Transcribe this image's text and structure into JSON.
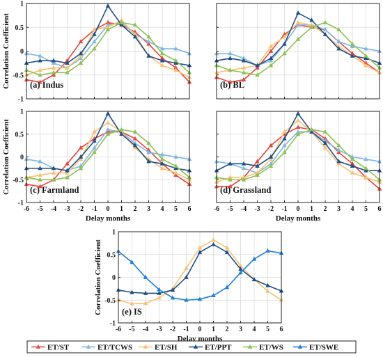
{
  "chart_data": [
    {
      "type": "line",
      "label": "(a) Indus",
      "x": [
        -6,
        -5,
        -4,
        -3,
        -2,
        -1,
        0,
        1,
        2,
        3,
        4,
        5,
        6
      ],
      "xticks": [
        "",
        "",
        "",
        "",
        "",
        "",
        "",
        "",
        "",
        "",
        "",
        "",
        ""
      ],
      "xlabel": "",
      "ylabel": "Correlation Coefficient",
      "ylim": [
        -1,
        1
      ],
      "yticks": [
        "-1",
        "-0.5",
        "0",
        "0.5",
        "1"
      ],
      "grid": true,
      "series": [
        {
          "name": "ET/ST",
          "values": [
            -0.6,
            -0.65,
            -0.5,
            -0.2,
            0.2,
            0.45,
            0.6,
            0.55,
            0.4,
            0.15,
            -0.15,
            -0.35,
            -0.65
          ]
        },
        {
          "name": "ET/TCWS",
          "values": [
            -0.05,
            -0.1,
            -0.25,
            -0.35,
            -0.15,
            0.2,
            0.55,
            0.6,
            0.35,
            0.2,
            0.05,
            0.05,
            -0.05
          ]
        },
        {
          "name": "ET/SH",
          "values": [
            -0.5,
            -0.4,
            -0.35,
            -0.35,
            -0.1,
            0.45,
            0.5,
            0.65,
            0.35,
            -0.1,
            -0.3,
            -0.4,
            -0.55
          ]
        },
        {
          "name": "ET/PPT",
          "values": [
            -0.25,
            -0.2,
            -0.2,
            -0.25,
            -0.05,
            0.35,
            0.95,
            0.55,
            0.3,
            -0.1,
            -0.2,
            -0.25,
            -0.3
          ]
        },
        {
          "name": "ET/WS",
          "values": [
            -0.4,
            -0.5,
            -0.45,
            -0.45,
            -0.25,
            0.05,
            0.45,
            0.6,
            0.55,
            0.3,
            -0.05,
            -0.2,
            -0.45
          ]
        }
      ]
    },
    {
      "type": "line",
      "label": "(b) BL",
      "x": [
        -6,
        -5,
        -4,
        -3,
        -2,
        -1,
        0,
        1,
        2,
        3,
        4,
        5,
        6
      ],
      "xticks": [
        "",
        "",
        "",
        "",
        "",
        "",
        "",
        "",
        "",
        "",
        "",
        "",
        ""
      ],
      "xlabel": "",
      "ylabel": "",
      "ylim": [
        -1,
        1
      ],
      "yticks": [
        "",
        "",
        "",
        "",
        ""
      ],
      "grid": true,
      "series": [
        {
          "name": "ET/ST",
          "values": [
            -0.55,
            -0.65,
            -0.6,
            -0.35,
            0.0,
            0.35,
            0.55,
            0.5,
            0.45,
            0.2,
            -0.05,
            -0.25,
            -0.45
          ]
        },
        {
          "name": "ET/TCWS",
          "values": [
            -0.05,
            -0.05,
            -0.15,
            -0.3,
            -0.2,
            0.15,
            0.55,
            0.55,
            0.45,
            0.2,
            0.1,
            0.05,
            0.0
          ]
        },
        {
          "name": "ET/SH",
          "values": [
            -0.45,
            -0.4,
            -0.35,
            -0.3,
            0.1,
            0.3,
            0.6,
            0.55,
            0.35,
            0.1,
            -0.1,
            -0.3,
            -0.45
          ]
        },
        {
          "name": "ET/PPT",
          "values": [
            -0.2,
            -0.15,
            -0.2,
            -0.3,
            -0.15,
            0.15,
            0.8,
            0.65,
            0.35,
            0.05,
            -0.1,
            -0.15,
            -0.25
          ]
        },
        {
          "name": "ET/WS",
          "values": [
            -0.3,
            -0.4,
            -0.45,
            -0.5,
            -0.3,
            -0.05,
            0.25,
            0.5,
            0.6,
            0.45,
            0.15,
            -0.1,
            -0.35
          ]
        }
      ]
    },
    {
      "type": "line",
      "label": "(c) Farmland",
      "x": [
        -6,
        -5,
        -4,
        -3,
        -2,
        -1,
        0,
        1,
        2,
        3,
        4,
        5,
        6
      ],
      "xticks": [
        "-6",
        "-5",
        "-4",
        "-3",
        "-2",
        "-1",
        "0",
        "1",
        "2",
        "3",
        "4",
        "5",
        "6"
      ],
      "xlabel": "Delay months",
      "ylabel": "Correlation Coefficient",
      "ylim": [
        -1,
        1
      ],
      "yticks": [
        "-1",
        "-0.5",
        "0",
        "0.5",
        "1"
      ],
      "grid": true,
      "series": [
        {
          "name": "ET/ST",
          "values": [
            -0.6,
            -0.65,
            -0.5,
            -0.15,
            0.2,
            0.4,
            0.55,
            0.55,
            0.4,
            0.15,
            -0.15,
            -0.4,
            -0.6
          ]
        },
        {
          "name": "ET/TCWS",
          "values": [
            -0.05,
            -0.1,
            -0.25,
            -0.3,
            -0.2,
            0.2,
            0.6,
            0.55,
            0.3,
            0.1,
            0.05,
            0.0,
            -0.05
          ]
        },
        {
          "name": "ET/SH",
          "values": [
            -0.45,
            -0.4,
            -0.35,
            -0.35,
            -0.05,
            0.55,
            0.75,
            0.55,
            0.2,
            -0.05,
            -0.25,
            -0.35,
            -0.5
          ]
        },
        {
          "name": "ET/PPT",
          "values": [
            -0.25,
            -0.25,
            -0.25,
            -0.3,
            0.0,
            0.35,
            0.95,
            0.5,
            0.25,
            -0.1,
            -0.15,
            -0.25,
            -0.3
          ]
        },
        {
          "name": "ET/WS",
          "values": [
            -0.45,
            -0.5,
            -0.5,
            -0.45,
            -0.25,
            0.1,
            0.5,
            0.6,
            0.55,
            0.3,
            -0.05,
            -0.2,
            -0.45
          ]
        }
      ]
    },
    {
      "type": "line",
      "label": "(d) Grassland",
      "x": [
        -6,
        -5,
        -4,
        -3,
        -2,
        -1,
        0,
        1,
        2,
        3,
        4,
        5,
        6
      ],
      "xticks": [
        "-6",
        "-5",
        "-4",
        "-3",
        "-2",
        "-1",
        "0",
        "1",
        "2",
        "3",
        "4",
        "5",
        "6"
      ],
      "xlabel": "Delay months",
      "ylabel": "",
      "ylim": [
        -1,
        1
      ],
      "yticks": [
        "",
        "",
        "",
        "",
        ""
      ],
      "grid": true,
      "series": [
        {
          "name": "ET/ST",
          "values": [
            -0.65,
            -0.65,
            -0.45,
            -0.1,
            0.25,
            0.5,
            0.65,
            0.6,
            0.4,
            0.1,
            -0.15,
            -0.45,
            -0.7
          ]
        },
        {
          "name": "ET/TCWS",
          "values": [
            -0.1,
            -0.15,
            -0.25,
            -0.35,
            -0.15,
            0.25,
            0.55,
            0.55,
            0.35,
            0.15,
            0.0,
            -0.05,
            -0.1
          ]
        },
        {
          "name": "ET/SH",
          "values": [
            -0.55,
            -0.45,
            -0.45,
            -0.35,
            -0.05,
            0.55,
            0.8,
            0.55,
            0.2,
            -0.15,
            -0.35,
            -0.45,
            -0.55
          ]
        },
        {
          "name": "ET/PPT",
          "values": [
            -0.3,
            -0.15,
            -0.15,
            -0.2,
            0.0,
            0.4,
            0.95,
            0.55,
            0.3,
            -0.1,
            -0.2,
            -0.3,
            -0.3
          ]
        },
        {
          "name": "ET/WS",
          "values": [
            -0.45,
            -0.5,
            -0.5,
            -0.4,
            -0.2,
            0.1,
            0.5,
            0.6,
            0.55,
            0.25,
            -0.05,
            -0.25,
            -0.5
          ]
        }
      ]
    },
    {
      "type": "line",
      "label": "(e) IS",
      "x": [
        -6,
        -5,
        -4,
        -3,
        -2,
        -1,
        0,
        1,
        2,
        3,
        4,
        5,
        6
      ],
      "xticks": [
        "-6",
        "-5",
        "-4",
        "-3",
        "-2",
        "-1",
        "0",
        "1",
        "2",
        "3",
        "4",
        "5",
        "6"
      ],
      "xlabel": "Delay months",
      "ylabel": "Correlation Coefficient",
      "ylim": [
        -1,
        1
      ],
      "yticks": [
        "-1",
        "-0.5",
        "0",
        "0.5",
        "1"
      ],
      "grid": true,
      "series": [
        {
          "name": "ET/SH",
          "values": [
            -0.5,
            -0.58,
            -0.57,
            -0.45,
            -0.25,
            0.2,
            0.65,
            0.82,
            0.65,
            0.25,
            -0.05,
            -0.3,
            -0.5
          ]
        },
        {
          "name": "ET/PPT",
          "values": [
            -0.28,
            -0.33,
            -0.35,
            -0.35,
            -0.28,
            0.0,
            0.55,
            0.72,
            0.55,
            0.18,
            -0.05,
            -0.18,
            -0.3
          ]
        },
        {
          "name": "ET/SWE",
          "values": [
            0.57,
            0.33,
            0.0,
            -0.27,
            -0.45,
            -0.5,
            -0.48,
            -0.4,
            -0.22,
            0.1,
            0.4,
            0.58,
            0.53
          ]
        }
      ]
    }
  ],
  "legend": {
    "placement": "bottom",
    "entries": [
      {
        "name": "ET/ST",
        "color": "#e8443a",
        "marker": "triangle"
      },
      {
        "name": "ET/TCWS",
        "color": "#7fb7e0",
        "marker": "triangle"
      },
      {
        "name": "ET/SH",
        "color": "#f6c173",
        "marker": "triangle"
      },
      {
        "name": "ET/PPT",
        "color": "#1f4e87",
        "marker": "triangle"
      },
      {
        "name": "ET/WS",
        "color": "#8cc152",
        "marker": "triangle"
      },
      {
        "name": "ET/SWE",
        "color": "#1c7fd8",
        "marker": "triangle"
      }
    ]
  },
  "colors": {
    "ET/ST": "#e8443a",
    "ET/TCWS": "#7fb7e0",
    "ET/SH": "#f6c173",
    "ET/PPT": "#1f4e87",
    "ET/WS": "#8cc152",
    "ET/SWE": "#1c7fd8",
    "grid": "#d9d9d9",
    "axis": "#222222"
  }
}
